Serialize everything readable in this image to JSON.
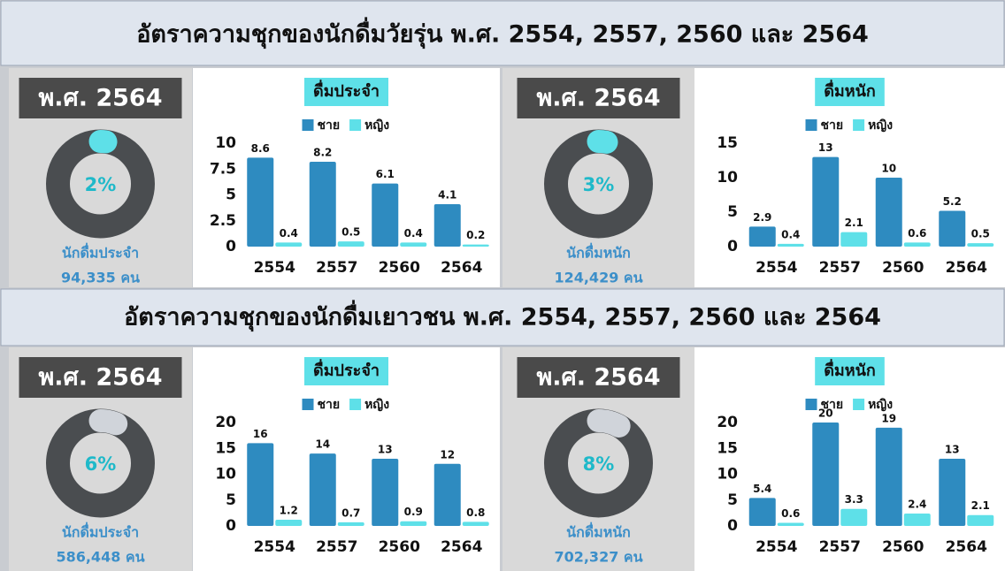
{
  "sections": [
    {
      "title": "อัตราความชุกของนักดื่มวัยรุ่น พ.ศ. 2554, 2557, 2560 และ 2564"
    },
    {
      "title": "อัตราความชุกของนักดื่มเยาวชน พ.ศ. 2554, 2557, 2560 และ 2564"
    }
  ],
  "chart_data": [
    {
      "type": "donut",
      "title": "พ.ศ. 2564",
      "values": [
        2
      ],
      "value_labels": [
        "2%"
      ],
      "color": "#5ee0e8",
      "ring_color": "#4a4d50",
      "text": [
        "นักดื่มประจำ",
        "94,335 คน"
      ]
    },
    {
      "type": "bar",
      "title": "ดื่มประจำ",
      "categories": [
        "2554",
        "2557",
        "2560",
        "2564"
      ],
      "series": [
        {
          "name": "ชาย",
          "color": "#2e8bc0",
          "values": [
            8.6,
            8.2,
            6.1,
            4.1
          ]
        },
        {
          "name": "หญิง",
          "color": "#5ee0e8",
          "values": [
            0.4,
            0.5,
            0.4,
            0.2
          ]
        }
      ],
      "ylim": [
        0,
        10
      ],
      "yticks": [
        0,
        2.5,
        5,
        7.5,
        10
      ]
    },
    {
      "type": "donut",
      "title": "พ.ศ. 2564",
      "values": [
        3
      ],
      "value_labels": [
        "3%"
      ],
      "color": "#5ee0e8",
      "ring_color": "#4a4d50",
      "text": [
        "นักดื่มหนัก",
        "124,429 คน"
      ]
    },
    {
      "type": "bar",
      "title": "ดื่มหนัก",
      "categories": [
        "2554",
        "2557",
        "2560",
        "2564"
      ],
      "series": [
        {
          "name": "ชาย",
          "color": "#2e8bc0",
          "values": [
            2.9,
            13,
            10,
            5.2
          ]
        },
        {
          "name": "หญิง",
          "color": "#5ee0e8",
          "values": [
            0.4,
            2.1,
            0.6,
            0.5
          ]
        }
      ],
      "ylim": [
        0,
        15
      ],
      "yticks": [
        0,
        5,
        10,
        15
      ]
    },
    {
      "type": "donut",
      "title": "พ.ศ. 2564",
      "values": [
        6
      ],
      "value_labels": [
        "6%"
      ],
      "color": "#d0d4da",
      "ring_color": "#4a4d50",
      "text": [
        "นักดื่มประจำ",
        "586,448 คน"
      ]
    },
    {
      "type": "bar",
      "title": "ดื่มประจำ",
      "categories": [
        "2554",
        "2557",
        "2560",
        "2564"
      ],
      "series": [
        {
          "name": "ชาย",
          "color": "#2e8bc0",
          "values": [
            16,
            14,
            13,
            12
          ]
        },
        {
          "name": "หญิง",
          "color": "#5ee0e8",
          "values": [
            1.2,
            0.7,
            0.9,
            0.8
          ]
        }
      ],
      "ylim": [
        0,
        20
      ],
      "yticks": [
        0,
        5,
        10,
        15,
        20
      ]
    },
    {
      "type": "donut",
      "title": "พ.ศ. 2564",
      "values": [
        8
      ],
      "value_labels": [
        "8%"
      ],
      "color": "#d0d4da",
      "ring_color": "#4a4d50",
      "text": [
        "นักดื่มหนัก",
        "702,327 คน"
      ]
    },
    {
      "type": "bar",
      "title": "ดื่มหนัก",
      "categories": [
        "2554",
        "2557",
        "2560",
        "2564"
      ],
      "series": [
        {
          "name": "ชาย",
          "color": "#2e8bc0",
          "values": [
            5.4,
            20,
            19,
            13
          ]
        },
        {
          "name": "หญิง",
          "color": "#5ee0e8",
          "values": [
            0.6,
            3.3,
            2.4,
            2.1
          ]
        }
      ],
      "ylim": [
        0,
        20
      ],
      "yticks": [
        0,
        5,
        10,
        15,
        20
      ]
    }
  ]
}
